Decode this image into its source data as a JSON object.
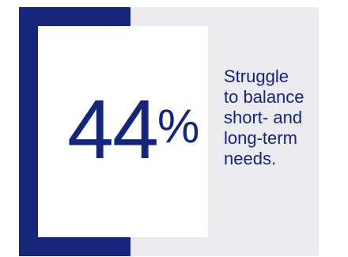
{
  "stat": {
    "number": "44",
    "symbol": "%",
    "caption": "Struggle\nto balance\nshort- and\nlong-term\nneeds."
  },
  "colors": {
    "navy": "#14257a",
    "light_gray": "#ebebef",
    "background": "#ffffff"
  }
}
